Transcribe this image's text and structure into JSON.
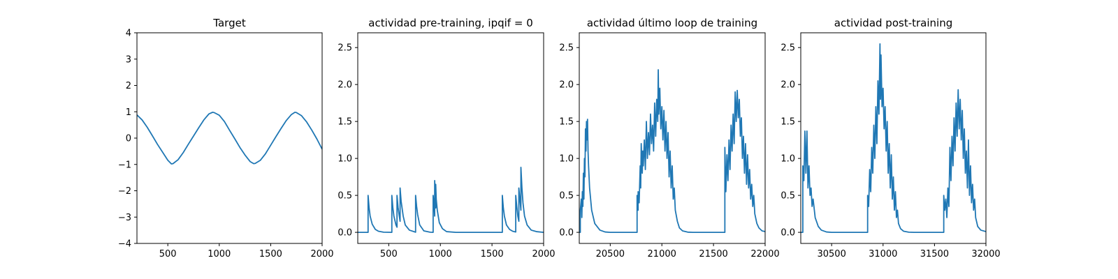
{
  "chart_data": [
    {
      "type": "line",
      "title": "Target",
      "xlim": [
        200,
        2000
      ],
      "ylim": [
        -4,
        4
      ],
      "xticks": [
        500,
        1000,
        1500,
        2000
      ],
      "yticks": [
        -4,
        -3,
        -2,
        -1,
        0,
        1,
        2,
        3,
        4
      ],
      "color": "#1f77b4",
      "series": [
        {
          "x": [
            200,
            250,
            300,
            350,
            400,
            450,
            500,
            535,
            550,
            600,
            650,
            700,
            750,
            800,
            850,
            900,
            935,
            950,
            1000,
            1050,
            1100,
            1150,
            1200,
            1250,
            1300,
            1335,
            1350,
            1400,
            1450,
            1500,
            1550,
            1600,
            1650,
            1700,
            1735,
            1750,
            1800,
            1850,
            1900,
            1950,
            2000
          ],
          "y": [
            0.88,
            0.69,
            0.41,
            0.09,
            -0.24,
            -0.54,
            -0.84,
            -0.98,
            -0.97,
            -0.82,
            -0.55,
            -0.23,
            0.08,
            0.39,
            0.69,
            0.92,
            0.98,
            0.97,
            0.87,
            0.63,
            0.3,
            -0.02,
            -0.35,
            -0.64,
            -0.89,
            -0.97,
            -0.96,
            -0.84,
            -0.59,
            -0.27,
            0.05,
            0.36,
            0.66,
            0.89,
            0.98,
            0.97,
            0.85,
            0.61,
            0.3,
            -0.04,
            -0.42
          ]
        }
      ]
    },
    {
      "type": "line",
      "title": "actividad pre-training, ipqif = 0",
      "xlim": [
        200,
        2000
      ],
      "ylim": [
        -0.15,
        2.7
      ],
      "xticks": [
        500,
        1000,
        1500,
        2000
      ],
      "yticks": [
        "0.0",
        "0.5",
        "1.0",
        "1.5",
        "2.0",
        "2.5"
      ],
      "color": "#1f77b4",
      "series": [
        {
          "x": [
            200,
            300,
            300,
            310,
            320,
            340,
            370,
            400,
            450,
            530,
            530,
            540,
            550,
            570,
            580,
            580,
            590,
            600,
            610,
            610,
            620,
            640,
            660,
            700,
            760,
            760,
            770,
            780,
            800,
            840,
            900,
            930,
            930,
            940,
            945,
            945,
            950,
            955,
            955,
            960,
            970,
            990,
            1020,
            1060,
            1150,
            1300,
            1600,
            1600,
            1610,
            1620,
            1640,
            1670,
            1700,
            1730,
            1730,
            1740,
            1750,
            1760,
            1760,
            1770,
            1780,
            1780,
            1790,
            1800,
            1815,
            1840,
            1880,
            1930,
            2000
          ],
          "y": [
            0,
            0,
            0.5,
            0.33,
            0.22,
            0.11,
            0.04,
            0.015,
            0.002,
            0,
            0.5,
            0.33,
            0.22,
            0.1,
            0.07,
            0.5,
            0.34,
            0.24,
            0.15,
            0.6,
            0.42,
            0.22,
            0.1,
            0.03,
            0.002,
            0.5,
            0.35,
            0.24,
            0.1,
            0.02,
            0.002,
            0,
            0.5,
            0.35,
            0.22,
            0.7,
            0.5,
            0.33,
            0.65,
            0.45,
            0.3,
            0.13,
            0.05,
            0.01,
            0,
            0,
            0,
            0.5,
            0.33,
            0.22,
            0.1,
            0.04,
            0.015,
            0.005,
            0.5,
            0.35,
            0.22,
            0.15,
            0.6,
            0.45,
            0.3,
            0.88,
            0.6,
            0.4,
            0.22,
            0.1,
            0.03,
            0.01,
            0
          ]
        }
      ]
    },
    {
      "type": "line",
      "title": "actividad último loop de training",
      "xlim": [
        20200,
        22000
      ],
      "ylim": [
        -0.15,
        2.7
      ],
      "xticks": [
        20500,
        21000,
        21500,
        22000
      ],
      "yticks": [
        "0.0",
        "0.5",
        "1.0",
        "1.5",
        "2.0",
        "2.5"
      ],
      "color": "#1f77b4",
      "series": [
        {
          "x": [
            20200,
            20210,
            20210,
            20220,
            20225,
            20230,
            20235,
            20240,
            20245,
            20250,
            20255,
            20260,
            20265,
            20270,
            20275,
            20280,
            20285,
            20290,
            20300,
            20320,
            20350,
            20400,
            20450,
            20500,
            20760,
            20760,
            20770,
            20770,
            20780,
            20790,
            20795,
            20800,
            20810,
            20815,
            20820,
            20830,
            20840,
            20850,
            20860,
            20870,
            20880,
            20890,
            20900,
            20910,
            20920,
            20930,
            20940,
            20950,
            20960,
            20965,
            20970,
            20980,
            20990,
            21000,
            21010,
            21020,
            21030,
            21040,
            21050,
            21060,
            21070,
            21080,
            21090,
            21100,
            21110,
            21120,
            21130,
            21150,
            21170,
            21200,
            21250,
            21300,
            21400,
            21500,
            21610,
            21610,
            21620,
            21630,
            21640,
            21650,
            21660,
            21670,
            21680,
            21690,
            21700,
            21710,
            21720,
            21730,
            21740,
            21750,
            21760,
            21770,
            21780,
            21790,
            21800,
            21810,
            21820,
            21830,
            21840,
            21850,
            21860,
            21870,
            21880,
            21890,
            21900,
            21920,
            21940,
            21970,
            22000
          ],
          "y": [
            0,
            0,
            0.3,
            0.45,
            0.2,
            0.55,
            0.35,
            0.8,
            0.45,
            1.0,
            0.75,
            1.4,
            1.1,
            1.5,
            1.25,
            1.53,
            1.1,
            0.9,
            0.6,
            0.3,
            0.12,
            0.03,
            0.005,
            0,
            0,
            0.5,
            0.3,
            0.55,
            0.4,
            0.9,
            0.6,
            1.2,
            0.8,
            1.1,
            0.9,
            1.25,
            0.85,
            1.5,
            1.0,
            1.35,
            1.05,
            1.6,
            1.2,
            1.45,
            1.1,
            1.75,
            1.3,
            1.8,
            1.5,
            2.2,
            1.6,
            1.95,
            1.4,
            1.7,
            1.25,
            1.65,
            1.1,
            1.5,
            1.0,
            1.35,
            0.75,
            1.1,
            0.6,
            0.9,
            0.45,
            0.6,
            0.3,
            0.15,
            0.06,
            0.02,
            0.003,
            0,
            0,
            0,
            0,
            1.15,
            0.55,
            1.05,
            0.7,
            1.25,
            0.85,
            1.45,
            1.1,
            1.6,
            1.2,
            1.9,
            1.5,
            1.92,
            1.55,
            1.8,
            1.3,
            1.55,
            1.0,
            1.3,
            0.8,
            1.2,
            0.65,
            1.05,
            0.6,
            0.85,
            0.45,
            0.65,
            0.35,
            0.5,
            0.25,
            0.12,
            0.06,
            0.02,
            0.01
          ]
        }
      ]
    },
    {
      "type": "line",
      "title": "actividad post-training",
      "xlim": [
        30200,
        32000
      ],
      "ylim": [
        -0.15,
        2.7
      ],
      "xticks": [
        30500,
        31000,
        31500,
        32000
      ],
      "yticks": [
        "0.0",
        "0.5",
        "1.0",
        "1.5",
        "2.0",
        "2.5"
      ],
      "color": "#1f77b4",
      "series": [
        {
          "x": [
            30200,
            30220,
            30220,
            30230,
            30240,
            30250,
            30260,
            30270,
            30280,
            30290,
            30300,
            30310,
            30320,
            30340,
            30370,
            30400,
            30450,
            30500,
            30850,
            30850,
            30860,
            30870,
            30880,
            30890,
            30900,
            30910,
            30920,
            30930,
            30940,
            30950,
            30960,
            30970,
            30975,
            30980,
            30990,
            31000,
            31010,
            31020,
            31030,
            31040,
            31050,
            31060,
            31070,
            31080,
            31090,
            31100,
            31110,
            31120,
            31130,
            31140,
            31150,
            31170,
            31200,
            31250,
            31300,
            31400,
            31500,
            31590,
            31590,
            31600,
            31610,
            31620,
            31630,
            31640,
            31650,
            31660,
            31670,
            31680,
            31690,
            31700,
            31710,
            31720,
            31730,
            31740,
            31750,
            31760,
            31770,
            31780,
            31790,
            31800,
            31810,
            31820,
            31830,
            31840,
            31850,
            31860,
            31870,
            31880,
            31890,
            31900,
            31920,
            31950,
            32000
          ],
          "y": [
            0,
            0,
            0.9,
            0.7,
            1.37,
            0.8,
            1.37,
            0.6,
            0.9,
            0.5,
            0.6,
            0.35,
            0.45,
            0.2,
            0.08,
            0.03,
            0.005,
            0,
            0,
            0.5,
            0.35,
            0.85,
            0.55,
            1.15,
            0.8,
            1.45,
            1.0,
            1.7,
            1.2,
            2.05,
            1.6,
            2.55,
            1.8,
            2.4,
            1.7,
            1.95,
            1.4,
            1.7,
            1.1,
            1.5,
            0.8,
            1.2,
            0.6,
            1.05,
            0.45,
            0.75,
            0.3,
            0.55,
            0.2,
            0.3,
            0.12,
            0.05,
            0.015,
            0.002,
            0,
            0,
            0,
            0,
            0.5,
            0.3,
            0.45,
            0.2,
            0.6,
            0.35,
            1.15,
            0.7,
            1.3,
            0.9,
            1.55,
            1.1,
            1.75,
            1.3,
            1.93,
            1.4,
            1.8,
            1.25,
            1.65,
            1.0,
            1.4,
            0.8,
            1.1,
            0.6,
            1.25,
            0.5,
            0.9,
            0.4,
            0.65,
            0.3,
            0.45,
            0.2,
            0.08,
            0.03,
            0.01
          ]
        }
      ]
    }
  ]
}
